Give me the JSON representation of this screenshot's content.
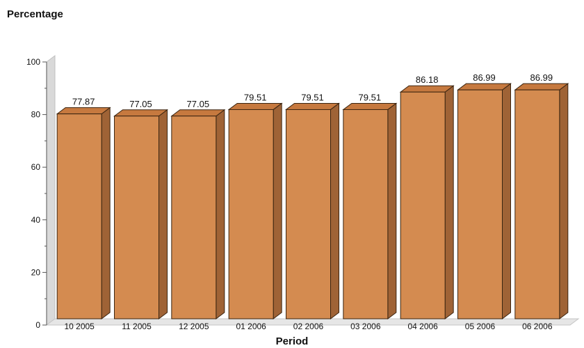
{
  "chart_data": {
    "type": "bar",
    "title": "",
    "xlabel": "Period",
    "ylabel": "Percentage",
    "categories": [
      "10 2005",
      "11 2005",
      "12 2005",
      "01 2006",
      "02 2006",
      "03 2006",
      "04 2006",
      "05 2006",
      "06 2006"
    ],
    "values": [
      77.87,
      77.05,
      77.05,
      79.51,
      79.51,
      79.51,
      86.18,
      86.99,
      86.99
    ],
    "value_labels": [
      "77.87",
      "77.05",
      "77.05",
      "79.51",
      "79.51",
      "79.51",
      "86.18",
      "86.99",
      "86.99"
    ],
    "ylim": [
      0,
      100
    ],
    "yticks": [
      0,
      20,
      40,
      60,
      80,
      100
    ],
    "ytick_labels": [
      "0",
      "20",
      "40",
      "60",
      "80",
      "100"
    ],
    "grid": false,
    "legend": "none",
    "colors": {
      "bar_front": "#d48b50",
      "bar_top": "#c6793f",
      "bar_side": "#9f6336",
      "bar_outline": "#3a2410",
      "wall": "#d9d9d9",
      "axis": "#555555",
      "text": "#111111"
    }
  }
}
